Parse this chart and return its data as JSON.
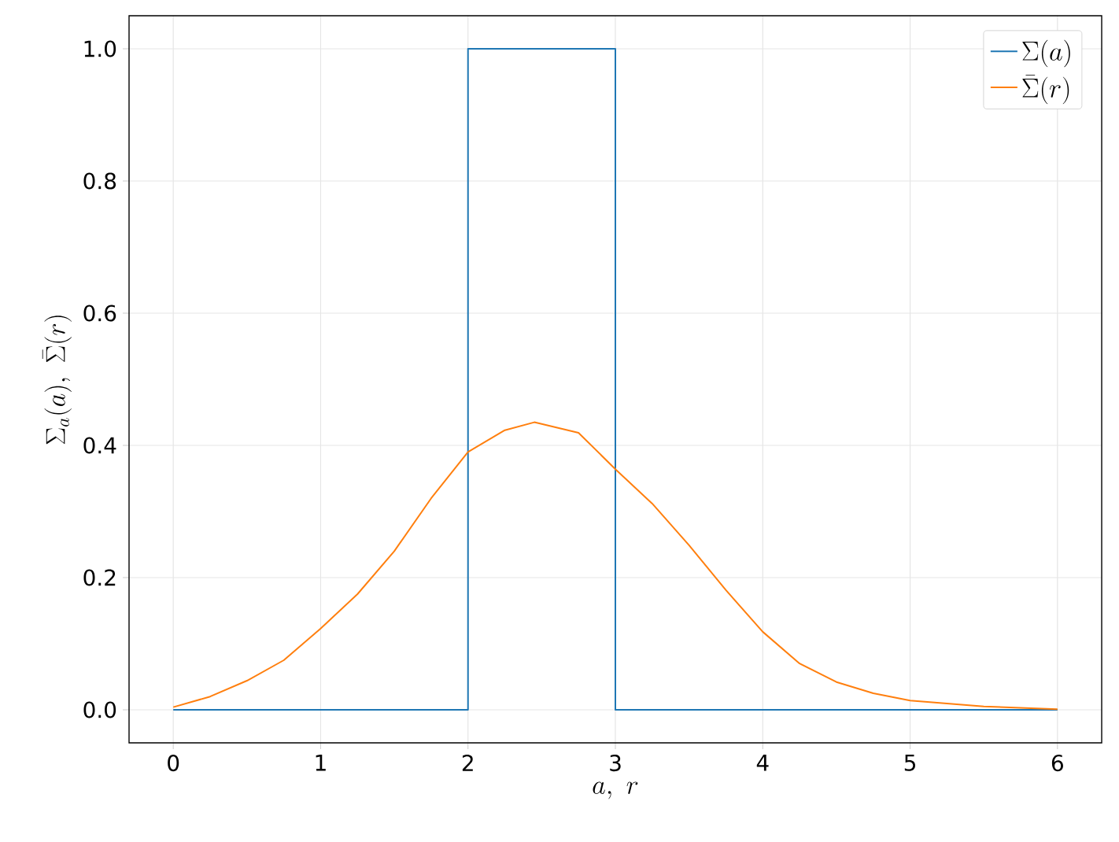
{
  "chart_data": {
    "type": "line",
    "xlabel": "a,\\ r",
    "ylabel": "\\Sigma_a(a),\\ \\bar{\\Sigma}(r)",
    "series": [
      {
        "name": "\\Sigma(a)",
        "color": "#1f77b4",
        "x": [
          0,
          2,
          2,
          3,
          3,
          6
        ],
        "values": [
          0,
          0,
          1,
          1,
          0,
          0
        ]
      },
      {
        "name": "\\bar{\\Sigma}(r)",
        "color": "#ff7f0e",
        "x": [
          0,
          0.25,
          0.5,
          0.75,
          1,
          1.25,
          1.5,
          1.75,
          2,
          2.25,
          2.45,
          2.75,
          3,
          3.25,
          3.5,
          3.75,
          4,
          4.25,
          4.5,
          4.75,
          5,
          5.5,
          6
        ],
        "values": [
          0.004,
          0.02,
          0.044,
          0.075,
          0.123,
          0.175,
          0.24,
          0.32,
          0.39,
          0.423,
          0.435,
          0.419,
          0.364,
          0.312,
          0.249,
          0.181,
          0.118,
          0.07,
          0.042,
          0.025,
          0.014,
          0.005,
          0.001
        ]
      }
    ],
    "xlim": [
      -0.3,
      6.3
    ],
    "ylim": [
      -0.05,
      1.05
    ],
    "xticks": [
      0,
      1,
      2,
      3,
      4,
      5,
      6
    ],
    "yticks": [
      {
        "value": 0,
        "label": "0.0"
      },
      {
        "value": 0.2,
        "label": "0.2"
      },
      {
        "value": 0.4,
        "label": "0.4"
      },
      {
        "value": 0.6,
        "label": "0.6"
      },
      {
        "value": 0.8,
        "label": "0.8"
      },
      {
        "value": 1,
        "label": "1.0"
      }
    ],
    "grid": true,
    "legend": "top right",
    "marker": "none",
    "line_style": "solid"
  }
}
